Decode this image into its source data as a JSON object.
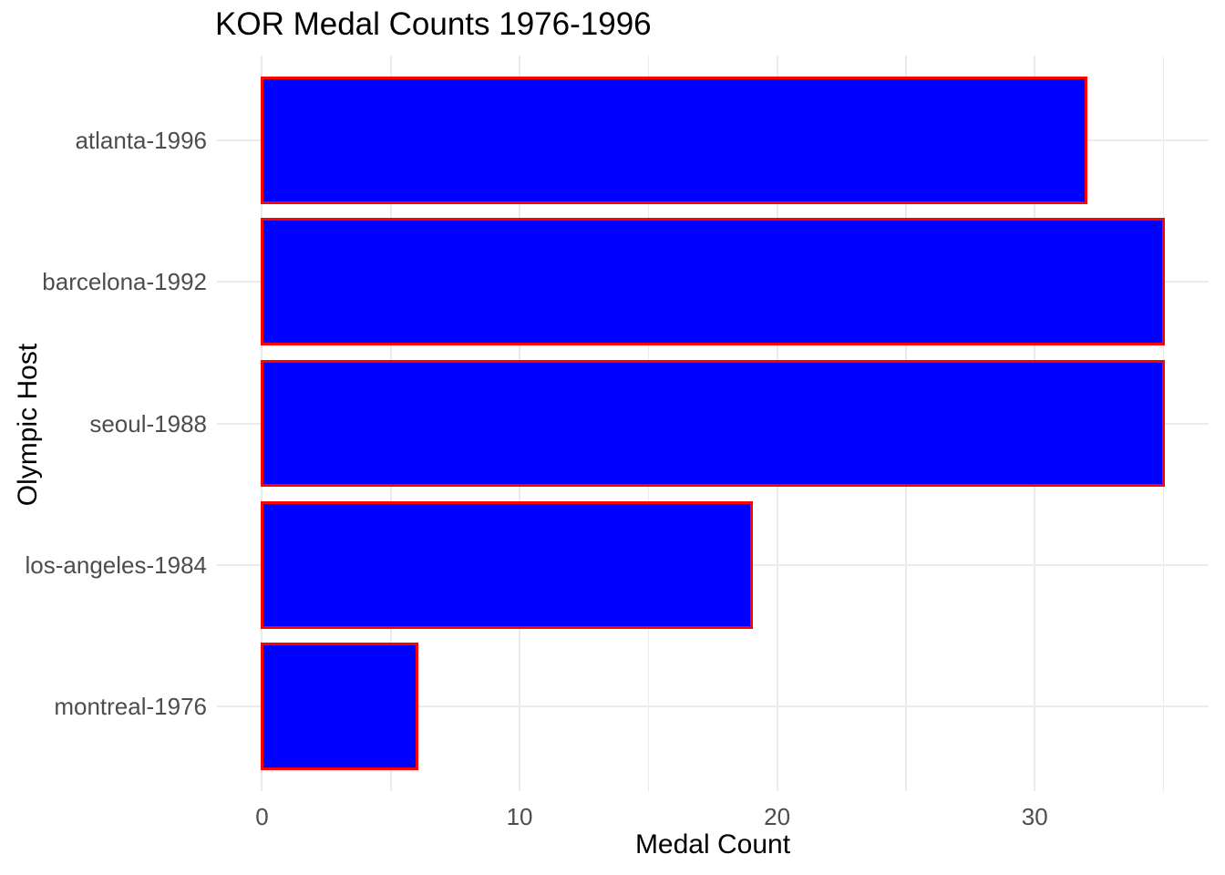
{
  "chart_data": {
    "type": "bar",
    "orientation": "horizontal",
    "title": "KOR Medal Counts 1976-1996",
    "xlabel": "Medal Count",
    "ylabel": "Olympic Host",
    "categories": [
      "atlanta-1996",
      "barcelona-1992",
      "seoul-1988",
      "los-angeles-1984",
      "montreal-1976"
    ],
    "values": [
      32,
      35,
      35,
      19,
      6
    ],
    "axis": {
      "xlim": [
        -1.75,
        36.75
      ],
      "x_major_ticks": [
        0,
        10,
        20,
        30
      ],
      "x_tick_labels": [
        "0",
        "10",
        "20",
        "30"
      ],
      "x_minor_gridlines": [
        5,
        15,
        25,
        35
      ],
      "grid": "on",
      "legend": "none"
    },
    "colors": {
      "bar_fill": "#0000FF",
      "bar_border": "#FF0000",
      "gridline": "#EBEBEB",
      "tick_text": "#4D4D4D",
      "title_text": "#000000",
      "background": "#FFFFFF"
    }
  }
}
